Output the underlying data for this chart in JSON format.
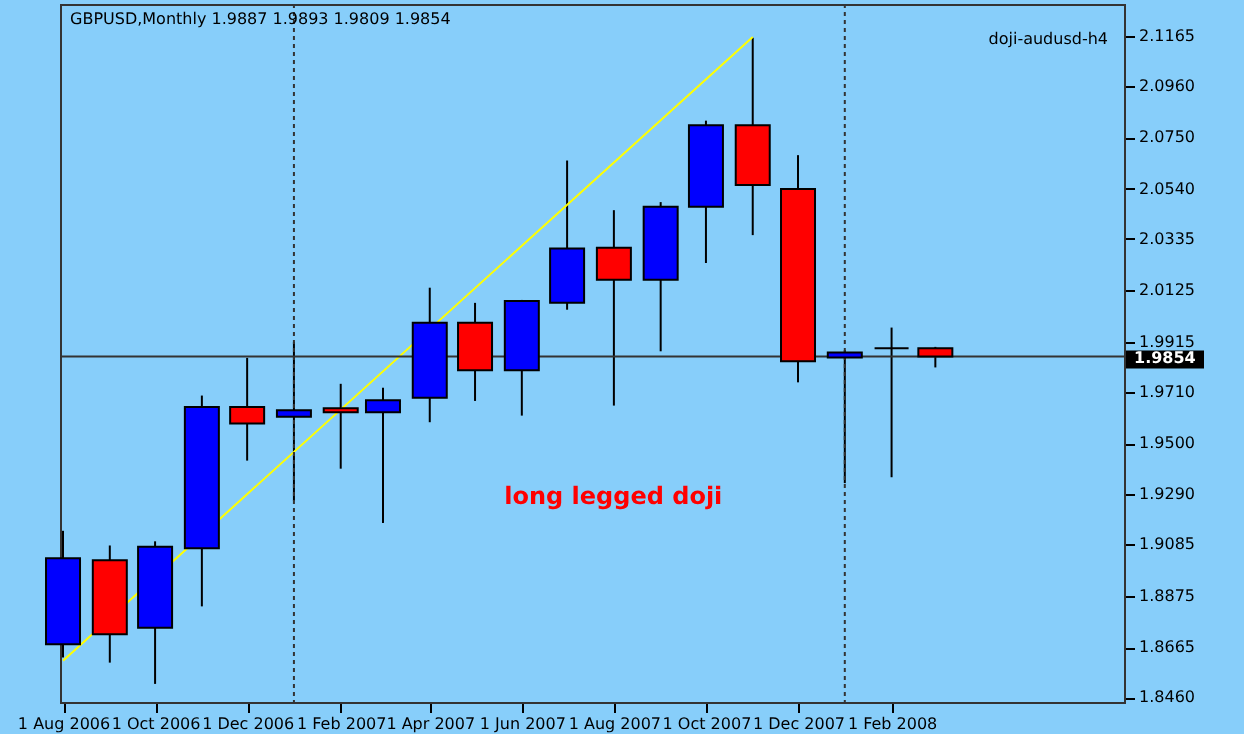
{
  "chart_data": {
    "type": "candlestick",
    "title": "GBPUSD,Monthly  1.9887 1.9893 1.9809 1.9854",
    "subtitle": "doji-audusd-h4",
    "annotations": [
      "long legged doji"
    ],
    "x": [
      "2006-08",
      "2006-09",
      "2006-10",
      "2006-11",
      "2006-12",
      "2007-01",
      "2007-02",
      "2007-03",
      "2007-04",
      "2007-05",
      "2007-06",
      "2007-07",
      "2007-08",
      "2007-09",
      "2007-10",
      "2007-11",
      "2007-12",
      "2008-01",
      "2008-02",
      "2008-03"
    ],
    "ohlc": [
      [
        1.8677,
        1.9141,
        1.8623,
        1.9029
      ],
      [
        1.9021,
        1.9081,
        1.8602,
        1.8718
      ],
      [
        1.8745,
        1.9098,
        1.8515,
        1.9076
      ],
      [
        1.907,
        1.9694,
        1.8832,
        1.9647
      ],
      [
        1.9647,
        1.9848,
        1.9428,
        1.958
      ],
      [
        1.9607,
        1.9913,
        1.9263,
        1.9634
      ],
      [
        1.9642,
        1.9742,
        1.9395,
        1.9626
      ],
      [
        1.9626,
        1.9726,
        1.9173,
        1.9675
      ],
      [
        1.9685,
        2.0135,
        1.9585,
        1.9992
      ],
      [
        1.9992,
        2.0073,
        1.9672,
        1.9797
      ],
      [
        1.9797,
        2.0085,
        1.9612,
        2.0081
      ],
      [
        2.0073,
        2.0655,
        2.0045,
        2.0295
      ],
      [
        2.0298,
        2.0452,
        1.9653,
        2.0167
      ],
      [
        2.0167,
        2.0485,
        1.9875,
        2.0466
      ],
      [
        2.0466,
        2.0818,
        2.0236,
        2.0799
      ],
      [
        2.0799,
        2.1157,
        2.035,
        2.0555
      ],
      [
        2.0539,
        2.0677,
        1.9748,
        1.9834
      ],
      [
        1.985,
        1.988,
        1.9336,
        1.987
      ],
      [
        1.9887,
        1.9972,
        1.936,
        1.9887
      ],
      [
        1.9887,
        1.9893,
        1.9809,
        1.9854
      ]
    ],
    "colors": [
      "#0000ff",
      "#ff0000",
      "#0000ff",
      "#0000ff",
      "#ff0000",
      "#0000ff",
      "#ff0000",
      "#0000ff",
      "#0000ff",
      "#ff0000",
      "#0000ff",
      "#0000ff",
      "#ff0000",
      "#0000ff",
      "#0000ff",
      "#ff0000",
      "#ff0000",
      "#0000ff",
      "#000000",
      "#ff0000"
    ],
    "series": [
      {
        "type": "line",
        "color": "#ffff00",
        "x": [
          "2006-08",
          "2007-11"
        ],
        "values": [
          1.861,
          2.116
        ]
      }
    ],
    "xlim": [
      "2006-07-30",
      "2008-07-04"
    ],
    "xticks": [
      {
        "value": "2006-08",
        "label": "1 Aug 2006"
      },
      {
        "value": "2006-10",
        "label": "1 Oct 2006"
      },
      {
        "value": "2006-12",
        "label": "1 Dec 2006"
      },
      {
        "value": "2007-02",
        "label": "1 Feb 2007"
      },
      {
        "value": "2007-04",
        "label": "1 Apr 2007"
      },
      {
        "value": "2007-06",
        "label": "1 Jun 2007"
      },
      {
        "value": "2007-08",
        "label": "1 Aug 2007"
      },
      {
        "value": "2007-10",
        "label": "1 Oct 2007"
      },
      {
        "value": "2007-12",
        "label": "1 Dec 2007"
      },
      {
        "value": "2008-02",
        "label": "1 Feb 2008"
      }
    ],
    "ylim": [
      1.8441,
      2.1295
    ],
    "yticks": [
      {
        "value": 2.1165,
        "label": "2.1165"
      },
      {
        "value": 2.096,
        "label": "2.0960"
      },
      {
        "value": 2.075,
        "label": "2.0750"
      },
      {
        "value": 2.054,
        "label": "2.0540"
      },
      {
        "value": 2.0335,
        "label": "2.0335"
      },
      {
        "value": 2.0125,
        "label": "2.0125"
      },
      {
        "value": 1.9915,
        "label": "1.9915"
      },
      {
        "value": 1.971,
        "label": "1.9710"
      },
      {
        "value": 1.95,
        "label": "1.9500"
      },
      {
        "value": 1.929,
        "label": "1.9290"
      },
      {
        "value": 1.9085,
        "label": "1.9085"
      },
      {
        "value": 1.8875,
        "label": "1.8875"
      },
      {
        "value": 1.8665,
        "label": "1.8665"
      },
      {
        "value": 1.846,
        "label": "1.8460"
      }
    ],
    "ref_lines": [
      {
        "axis": "y",
        "value": 1.9854,
        "label": "1.9854",
        "color": "#333333",
        "line_style": "solid"
      },
      {
        "axis": "x",
        "value": "2007-01",
        "label": null,
        "color": "#333333",
        "line_style": "dotted"
      },
      {
        "axis": "x",
        "value": "2008-01",
        "label": null,
        "color": "#333333",
        "line_style": "dotted"
      }
    ]
  }
}
